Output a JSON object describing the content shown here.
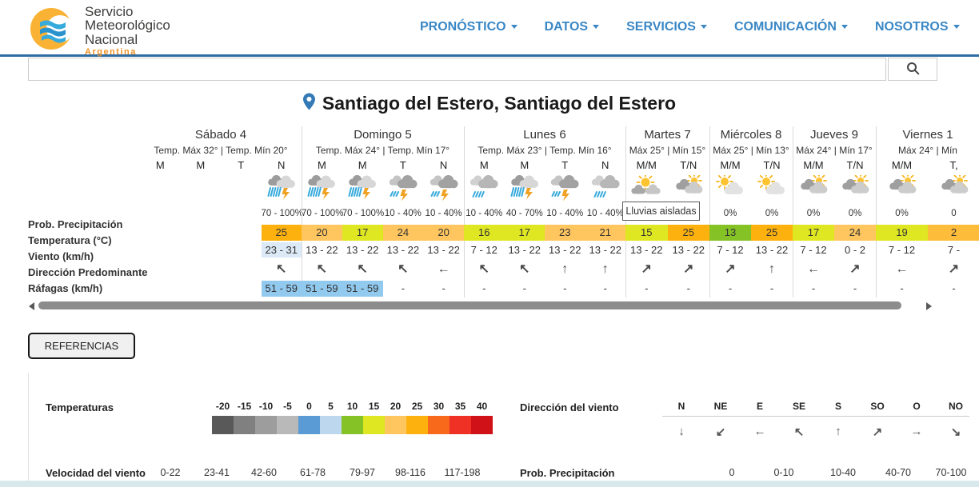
{
  "header": {
    "logo": {
      "line1": "Servicio",
      "line2": "Meteorológico",
      "line3": "Nacional",
      "line4": "Argentina"
    },
    "nav": [
      {
        "label": "PRONÓSTICO"
      },
      {
        "label": "DATOS"
      },
      {
        "label": "SERVICIOS"
      },
      {
        "label": "COMUNICACIÓN"
      },
      {
        "label": "NOSOTROS"
      }
    ]
  },
  "search": {
    "value": ""
  },
  "location_title": "Santiago del Estero, Santiago del Estero",
  "colors": {
    "accent_blue": "#337ab7",
    "gust_blue": "#92c9ee",
    "wind_lightblue": "#dce9f7"
  },
  "forecast": {
    "tooltip": "Lluvias aisladas",
    "row_labels": [
      "Prob. Precipitación",
      "Temperatura (°C)",
      "Viento (km/h)",
      "Dirección Predominante",
      "Ráfagas (km/h)"
    ],
    "days": [
      {
        "name": "Sábado 4",
        "temp_range": "Temp. Máx 32° | Temp. Mín 20°",
        "cols": [
          {
            "label": "M"
          },
          {
            "label": "M"
          },
          {
            "label": "T"
          },
          {
            "label": "N",
            "icon": "storm",
            "prob": "70 - 100%",
            "temp": "25",
            "temp_color": "#fdb10e",
            "wind": "23 - 31",
            "wind_bg": "#dce9f7",
            "dir": "↖",
            "gust": "51 - 59",
            "gust_bg": "#92c9ee"
          }
        ]
      },
      {
        "name": "Domingo 5",
        "temp_range": "Temp. Máx 24° | Temp. Mín 17°",
        "cols": [
          {
            "label": "M",
            "icon": "storm",
            "prob": "70 - 100%",
            "temp": "20",
            "temp_color": "#ffc65f",
            "wind": "13 - 22",
            "dir": "↖",
            "gust": "51 - 59",
            "gust_bg": "#92c9ee"
          },
          {
            "label": "M",
            "icon": "storm",
            "prob": "70 - 100%",
            "temp": "17",
            "temp_color": "#dee722",
            "wind": "13 - 22",
            "dir": "↖",
            "gust": "51 - 59",
            "gust_bg": "#92c9ee"
          },
          {
            "label": "T",
            "icon": "rain-bolt",
            "prob": "10 - 40%",
            "temp": "24",
            "temp_color": "#ffc65f",
            "wind": "13 - 22",
            "dir": "↖",
            "gust": "-"
          },
          {
            "label": "N",
            "icon": "rain-bolt",
            "prob": "10 - 40%",
            "temp": "20",
            "temp_color": "#ffc65f",
            "wind": "13 - 22",
            "dir": "←",
            "gust": "-"
          }
        ]
      },
      {
        "name": "Lunes 6",
        "temp_range": "Temp. Máx 23° | Temp. Mín 16°",
        "cols": [
          {
            "label": "M",
            "icon": "rain",
            "prob": "10 - 40%",
            "temp": "16",
            "temp_color": "#dee722",
            "wind": "7 - 12",
            "dir": "↖",
            "gust": "-"
          },
          {
            "label": "M",
            "icon": "storm",
            "prob": "40 - 70%",
            "temp": "17",
            "temp_color": "#dee722",
            "wind": "13 - 22",
            "dir": "↖",
            "gust": "-"
          },
          {
            "label": "T",
            "icon": "rain-bolt",
            "prob": "10 - 40%",
            "temp": "23",
            "temp_color": "#ffc65f",
            "wind": "13 - 22",
            "dir": "↑",
            "gust": "-"
          },
          {
            "label": "N",
            "icon": "rain",
            "prob": "10 - 40%",
            "temp": "21",
            "temp_color": "#ffc65f",
            "wind": "13 - 22",
            "dir": "↑",
            "gust": "-"
          }
        ]
      },
      {
        "name": "Martes 7",
        "temp_range": "Máx 25° | Mín 15°",
        "cols": [
          {
            "label": "M/M",
            "icon": "sun-clouds",
            "prob": "",
            "temp": "15",
            "temp_color": "#dee722",
            "wind": "13 - 22",
            "dir": "↗",
            "gust": "-"
          },
          {
            "label": "T/N",
            "icon": "cloud-sun",
            "prob": "",
            "temp": "25",
            "temp_color": "#fdb10e",
            "wind": "13 - 22",
            "dir": "↗",
            "gust": "-"
          }
        ]
      },
      {
        "name": "Miércoles 8",
        "temp_range": "Máx 25° | Mín 13°",
        "cols": [
          {
            "label": "M/M",
            "icon": "sun-cloud",
            "prob": "0%",
            "temp": "13",
            "temp_color": "#85c226",
            "wind": "7 - 12",
            "dir": "↗",
            "gust": "-"
          },
          {
            "label": "T/N",
            "icon": "sun-cloud",
            "prob": "0%",
            "temp": "25",
            "temp_color": "#fdb10e",
            "wind": "13 - 22",
            "dir": "↑",
            "gust": "-"
          }
        ]
      },
      {
        "name": "Jueves 9",
        "temp_range": "Máx 24° | Mín 17°",
        "cols": [
          {
            "label": "M/M",
            "icon": "cloud-sun",
            "prob": "0%",
            "temp": "17",
            "temp_color": "#dee722",
            "wind": "7 - 12",
            "dir": "←",
            "gust": "-"
          },
          {
            "label": "T/N",
            "icon": "cloud-sun",
            "prob": "0%",
            "temp": "24",
            "temp_color": "#ffc65f",
            "wind": "0 - 2",
            "dir": "↗",
            "gust": "-"
          }
        ]
      },
      {
        "name": "Viernes 1",
        "temp_range": "Máx 24° | Mín",
        "cols": [
          {
            "label": "M/M",
            "icon": "cloud-sun",
            "prob": "0%",
            "temp": "19",
            "temp_color": "#dee722",
            "wind": "7 - 12",
            "dir": "←",
            "gust": "-"
          },
          {
            "label": "T,",
            "icon": "cloud-sun",
            "prob": "0",
            "temp": "2",
            "temp_color": "#fdbc3a",
            "wind": "7 -",
            "dir": "↗",
            "gust": "-"
          }
        ]
      }
    ]
  },
  "references": {
    "button_label": "REFERENCIAS",
    "temperaturas": {
      "label": "Temperaturas",
      "ticks": [
        "-20",
        "-15",
        "-10",
        "-5",
        "0",
        "5",
        "10",
        "15",
        "20",
        "25",
        "30",
        "35",
        "40"
      ],
      "colors": [
        "#595959",
        "#808080",
        "#9d9d9d",
        "#b9b9b9",
        "#5b9bd5",
        "#bdd7ee",
        "#85c226",
        "#dee722",
        "#ffc65f",
        "#fdb10e",
        "#f9691c",
        "#ee3124",
        "#d01117"
      ]
    },
    "direccion": {
      "label": "Dirección del viento",
      "dirs": [
        {
          "name": "N",
          "arrow": "↓"
        },
        {
          "name": "NE",
          "arrow": "↙"
        },
        {
          "name": "E",
          "arrow": "←"
        },
        {
          "name": "SE",
          "arrow": "↖"
        },
        {
          "name": "S",
          "arrow": "↑"
        },
        {
          "name": "SO",
          "arrow": "↗"
        },
        {
          "name": "O",
          "arrow": "→"
        },
        {
          "name": "NO",
          "arrow": "↘"
        }
      ]
    },
    "velocidad": {
      "label": "Velocidad del viento",
      "values": [
        "0-22",
        "23-41",
        "42-60",
        "61-78",
        "79-97",
        "98-116",
        "117-198"
      ]
    },
    "precipitacion": {
      "label": "Prob. Precipitación",
      "values": [
        "0",
        "0-10",
        "10-40",
        "40-70",
        "70-100"
      ]
    }
  }
}
